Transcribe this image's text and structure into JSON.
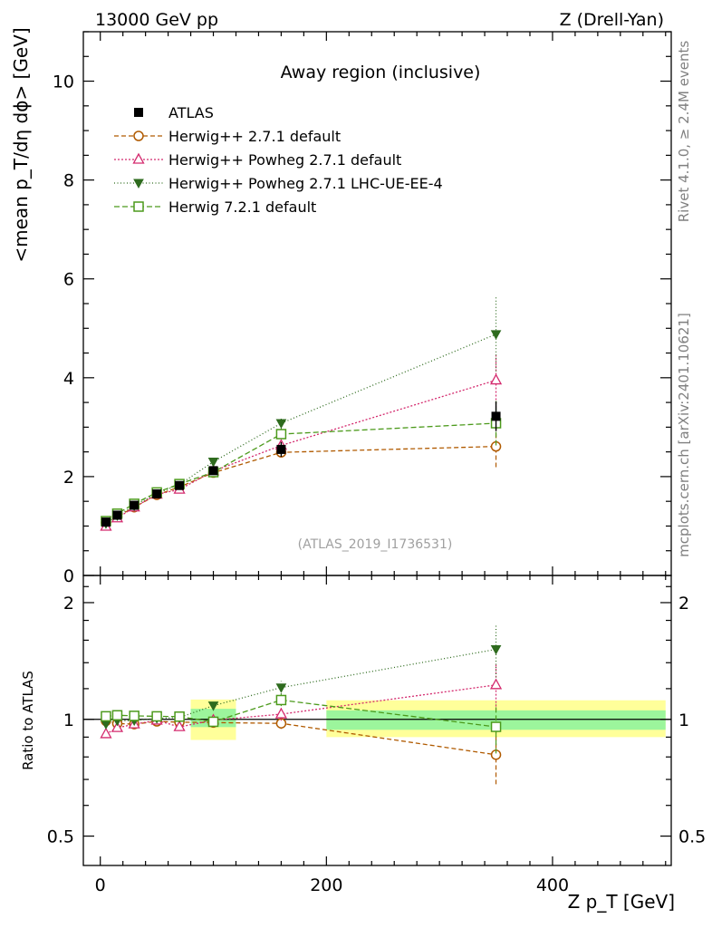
{
  "header": {
    "left": "13000 GeV pp",
    "right": "Z (Drell-Yan)"
  },
  "side_labels": {
    "rivet": "Rivet 4.1.0, ≥ 2.4M events",
    "mcplots": "mcplots.cern.ch [arXiv:2401.10621]"
  },
  "chart_data": {
    "type": "scatter",
    "title": "Away region (inclusive)",
    "watermark": "(ATLAS_2019_I1736531)",
    "xlabel": "Z p_T [GeV]",
    "ylabel": "<mean p_T/dη dϕ> [GeV]",
    "ratio_ylabel": "Ratio to ATLAS",
    "xlim": [
      -15,
      505
    ],
    "ylim": [
      0,
      11
    ],
    "ratio_ylim": [
      0.42,
      2.35
    ],
    "x_ticks": [
      "0",
      "200",
      "400"
    ],
    "y_ticks": [
      "0",
      "2",
      "4",
      "6",
      "8",
      "10"
    ],
    "ratio_y_ticks": [
      "0.5",
      "1",
      "2"
    ],
    "x": [
      5,
      15,
      30,
      50,
      70,
      100,
      160,
      350
    ],
    "data": {
      "name": "ATLAS",
      "color": "#000000",
      "values": [
        1.08,
        1.22,
        1.42,
        1.65,
        1.82,
        2.12,
        2.55,
        3.22
      ],
      "errors": [
        0.03,
        0.03,
        0.04,
        0.04,
        0.05,
        0.08,
        0.15,
        0.3
      ]
    },
    "series": [
      {
        "name": "Herwig++ 2.7.1 default",
        "color": "#b05a00",
        "marker": "circle-open",
        "dash": "5,3",
        "values": [
          1.07,
          1.19,
          1.38,
          1.63,
          1.79,
          2.08,
          2.49,
          2.61
        ],
        "errors": [
          0.02,
          0.02,
          0.03,
          0.03,
          0.04,
          0.06,
          0.08,
          0.42
        ]
      },
      {
        "name": "Herwig++ Powheg 2.7.1 default",
        "color": "#d42a6e",
        "marker": "triangle-up-open",
        "dash": "2,2",
        "values": [
          0.99,
          1.16,
          1.38,
          1.64,
          1.74,
          2.11,
          2.63,
          3.95
        ],
        "errors": [
          0.02,
          0.02,
          0.03,
          0.03,
          0.04,
          0.05,
          0.1,
          0.55
        ]
      },
      {
        "name": "Herwig++ Powheg 2.7.1 LHC-UE-EE-4",
        "color": "#2e6b1e",
        "marker": "triangle-down-filled",
        "dash": "1,2.5",
        "values": [
          1.05,
          1.21,
          1.41,
          1.66,
          1.84,
          2.3,
          3.08,
          4.88
        ],
        "errors": [
          0.02,
          0.02,
          0.03,
          0.03,
          0.04,
          0.06,
          0.12,
          0.75
        ]
      },
      {
        "name": "Herwig 7.2.1 default",
        "color": "#4c9a1c",
        "marker": "square-open",
        "dash": "6,3",
        "values": [
          1.1,
          1.25,
          1.45,
          1.68,
          1.85,
          2.09,
          2.86,
          3.08
        ],
        "errors": [
          0.02,
          0.02,
          0.03,
          0.03,
          0.04,
          0.06,
          0.1,
          0.45
        ]
      }
    ],
    "uncertainty_bands": [
      {
        "x": [
          80,
          120
        ],
        "stat_syst_lo": 0.885,
        "stat_syst_hi": 1.125,
        "stat_lo": 0.955,
        "stat_hi": 1.065
      },
      {
        "x": [
          200,
          500
        ],
        "stat_syst_lo": 0.9,
        "stat_syst_hi": 1.12,
        "stat_lo": 0.94,
        "stat_hi": 1.055
      }
    ],
    "band_colors": {
      "outer": "#ffff9a",
      "inner": "#9cf59c"
    }
  }
}
